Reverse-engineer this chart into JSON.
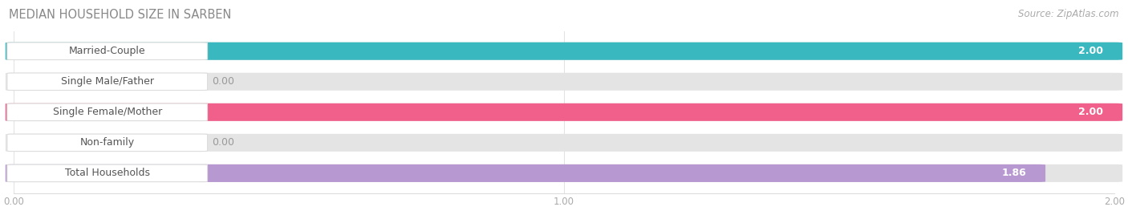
{
  "title": "MEDIAN HOUSEHOLD SIZE IN SARBEN",
  "source": "Source: ZipAtlas.com",
  "categories": [
    "Married-Couple",
    "Single Male/Father",
    "Single Female/Mother",
    "Non-family",
    "Total Households"
  ],
  "values": [
    2.0,
    0.0,
    2.0,
    0.0,
    1.86
  ],
  "bar_colors": [
    "#3ab8bf",
    "#a8b8e8",
    "#f0608a",
    "#f5c8a0",
    "#b898d0"
  ],
  "xlim": [
    0,
    2.0
  ],
  "xticks": [
    0.0,
    1.0,
    2.0
  ],
  "xtick_labels": [
    "0.00",
    "1.00",
    "2.00"
  ],
  "title_fontsize": 10.5,
  "source_fontsize": 8.5,
  "label_fontsize": 9,
  "value_fontsize": 9,
  "bar_height": 0.55,
  "bg_color": "#f2f2f2",
  "track_color": "#e4e4e4",
  "label_box_color": "#ffffff"
}
